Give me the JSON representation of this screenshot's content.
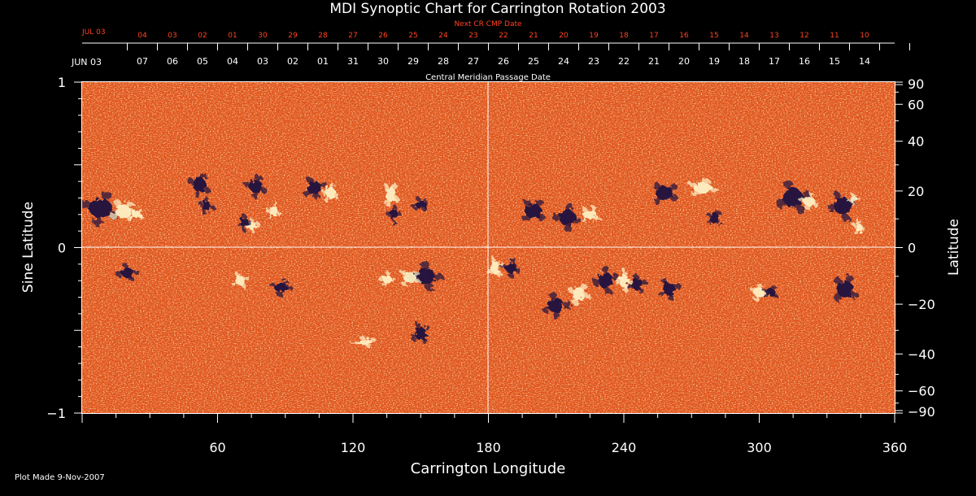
{
  "chart_data": {
    "type": "heatmap",
    "title": "MDI Synoptic Chart for Carrington Rotation 2003",
    "xlabel": "Carrington Longitude",
    "ylabel_left": "Sine Latitude",
    "ylabel_right": "Latitude",
    "x_range": [
      0,
      360
    ],
    "y_range": [
      -1,
      1
    ],
    "x_ticks": [
      "60",
      "120",
      "180",
      "240",
      "300",
      "360"
    ],
    "y_left_ticks": [
      "1",
      "0",
      "−1"
    ],
    "y_right_ticks": [
      "90",
      "60",
      "40",
      "20",
      "0",
      "−20",
      "−40",
      "−60",
      "−90"
    ],
    "cmp_date_axis_label": "Central Meridian Passage Date",
    "cmp_month_label": "JUN 03",
    "cmp_dates": [
      "07",
      "06",
      "05",
      "04",
      "03",
      "02",
      "01",
      "31",
      "30",
      "29",
      "28",
      "27",
      "26",
      "25",
      "24",
      "23",
      "22",
      "21",
      "20",
      "19",
      "18",
      "17",
      "16",
      "15",
      "14"
    ],
    "next_cr_axis_label": "Next CR CMP Date",
    "next_cr_month_label": "JUL 03",
    "next_cr_dates": [
      "04",
      "03",
      "02",
      "01",
      "30",
      "29",
      "28",
      "27",
      "26",
      "25",
      "24",
      "23",
      "22",
      "21",
      "20",
      "19",
      "18",
      "17",
      "16",
      "15",
      "14",
      "13",
      "12",
      "11",
      "10"
    ],
    "grid": "center-cross at 180 longitude and 0 latitude",
    "colors": {
      "background": "#000000",
      "map_base": "#e2541c",
      "positive_polarity": "#fff4c8",
      "negative_polarity": "#1a1240",
      "next_cr_axis": "#ff4422",
      "axis": "#ffffff"
    }
  },
  "footer": {
    "plot_made": "Plot Made  9-Nov-2007"
  }
}
